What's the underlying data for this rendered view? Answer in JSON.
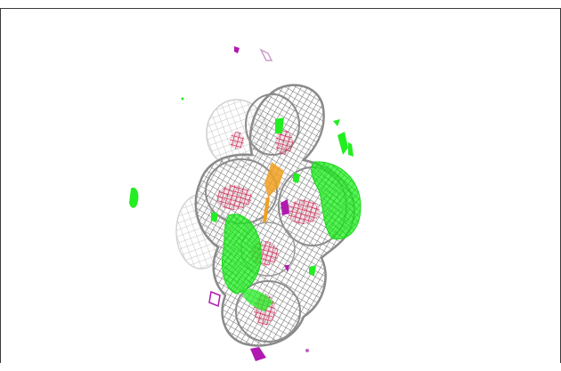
{
  "viewer": {
    "background": "#ffffff",
    "colors": {
      "mesh_gray": "#7a7a7a",
      "mesh_light": "#c8c8c8",
      "positive_density": "#1ee81e",
      "negative_density": "#b01ab0",
      "atom_core": "#d01848",
      "bond_core": "#f0a020"
    },
    "objects": [
      "electron-density-mesh",
      "difference-density-positive",
      "difference-density-negative",
      "molecule-core"
    ]
  }
}
